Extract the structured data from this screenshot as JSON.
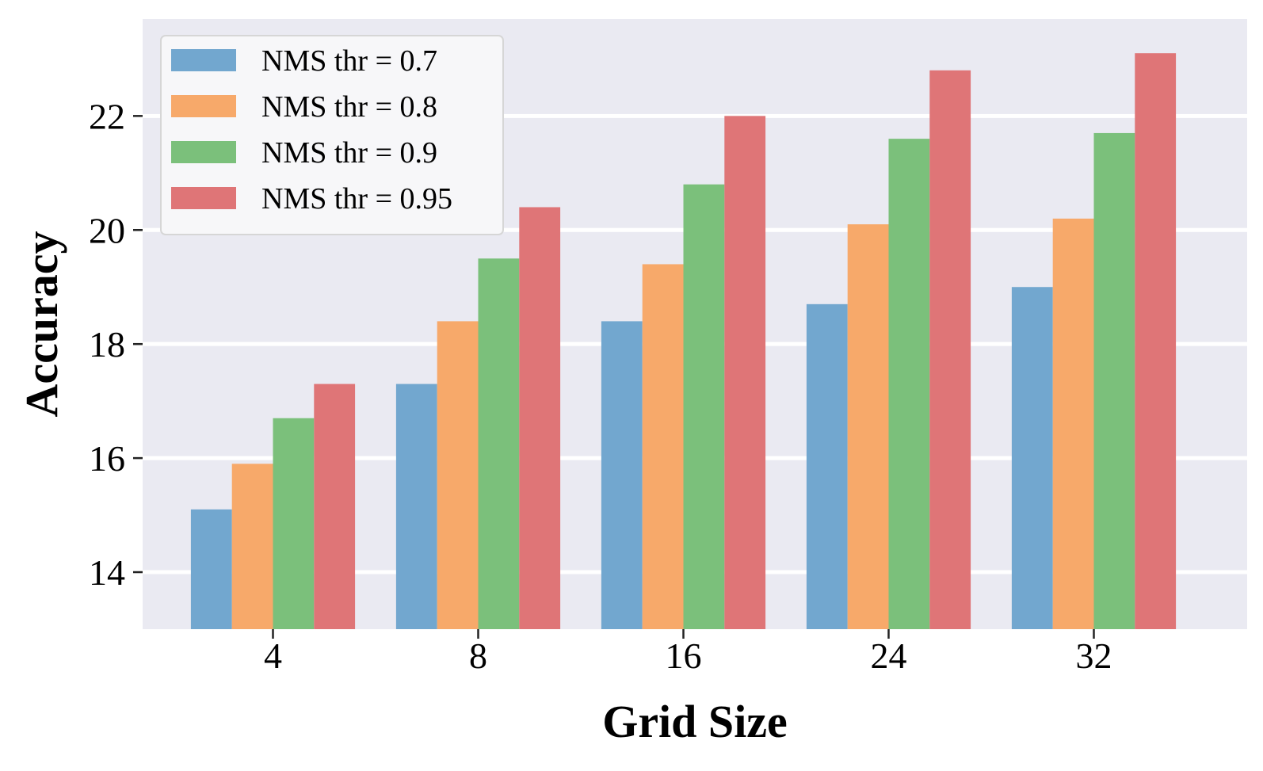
{
  "chart_data": {
    "type": "bar",
    "title": "",
    "xlabel": "Grid Size",
    "ylabel": "Accuracy",
    "categories": [
      "4",
      "8",
      "16",
      "24",
      "32"
    ],
    "ylim": [
      13,
      23.7
    ],
    "yticks": [
      14,
      16,
      18,
      20,
      22
    ],
    "grid": true,
    "legend_position": "top-left",
    "series": [
      {
        "name": "NMS thr = 0.7",
        "color": "#72a7cf",
        "values": [
          15.1,
          17.3,
          18.4,
          18.7,
          19.0
        ]
      },
      {
        "name": "NMS thr = 0.8",
        "color": "#f7a96a",
        "values": [
          15.9,
          18.4,
          19.4,
          20.1,
          20.2
        ]
      },
      {
        "name": "NMS thr = 0.9",
        "color": "#7bc07b",
        "values": [
          16.7,
          19.5,
          20.8,
          21.6,
          21.7
        ]
      },
      {
        "name": "NMS thr = 0.95",
        "color": "#df7577",
        "values": [
          17.3,
          20.4,
          22.0,
          22.8,
          23.1
        ]
      }
    ],
    "background_color": "#eaeaf2",
    "grid_color": "#ffffff"
  }
}
